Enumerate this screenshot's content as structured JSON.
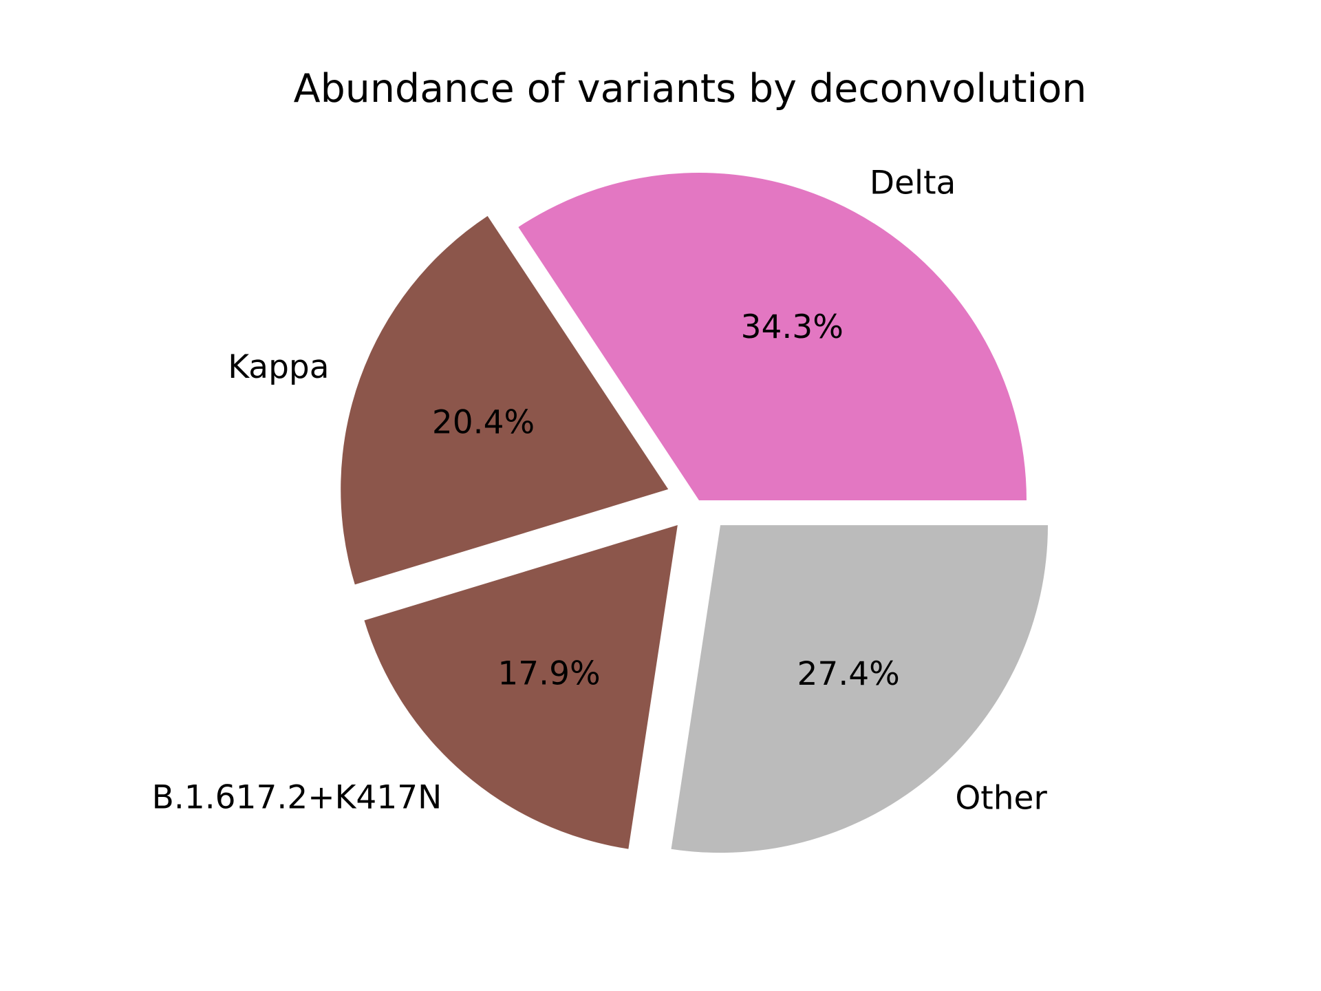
{
  "chart_data": {
    "type": "pie",
    "title": "Abundance of variants by deconvolution",
    "slices": [
      {
        "label": "Delta",
        "value": 34.3,
        "pct_label": "34.3%",
        "color": "#e377c2",
        "exploded": false
      },
      {
        "label": "Kappa",
        "value": 20.4,
        "pct_label": "20.4%",
        "color": "#8c564b",
        "exploded": true
      },
      {
        "label": "B.1.617.2+K417N",
        "value": 17.9,
        "pct_label": "17.9%",
        "color": "#8c564b",
        "exploded": true
      },
      {
        "label": "Other",
        "value": 27.4,
        "pct_label": "27.4%",
        "color": "#bbbbbb",
        "exploded": true
      }
    ],
    "start_angle_deg": 0,
    "direction": "counterclockwise",
    "legend": "none"
  }
}
